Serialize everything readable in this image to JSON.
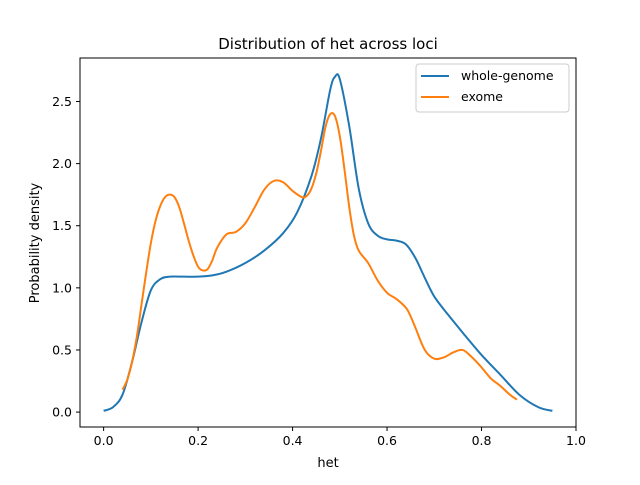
{
  "chart_data": {
    "type": "line",
    "title": "Distribution of het across loci",
    "xlabel": "het",
    "ylabel": "Probability density",
    "xlim": [
      -0.05,
      1.0
    ],
    "ylim": [
      -0.12,
      2.85
    ],
    "xticks": [
      0.0,
      0.2,
      0.4,
      0.6,
      0.8,
      1.0
    ],
    "xtick_labels": [
      "0.0",
      "0.2",
      "0.4",
      "0.6",
      "0.8",
      "1.0"
    ],
    "yticks": [
      0.0,
      0.5,
      1.0,
      1.5,
      2.0,
      2.5
    ],
    "ytick_labels": [
      "0.0",
      "0.5",
      "1.0",
      "1.5",
      "2.0",
      "2.5"
    ],
    "grid": false,
    "legend_position": "top-right",
    "series": [
      {
        "name": "whole-genome",
        "color": "#1f77b4",
        "x": [
          0.0,
          0.02,
          0.04,
          0.06,
          0.08,
          0.1,
          0.12,
          0.14,
          0.17,
          0.2,
          0.23,
          0.26,
          0.3,
          0.34,
          0.38,
          0.41,
          0.44,
          0.46,
          0.48,
          0.49,
          0.5,
          0.52,
          0.54,
          0.56,
          0.58,
          0.6,
          0.62,
          0.64,
          0.66,
          0.68,
          0.7,
          0.73,
          0.76,
          0.8,
          0.84,
          0.88,
          0.92,
          0.95
        ],
        "y": [
          0.01,
          0.04,
          0.14,
          0.4,
          0.72,
          0.98,
          1.07,
          1.09,
          1.09,
          1.09,
          1.1,
          1.13,
          1.2,
          1.3,
          1.44,
          1.61,
          1.9,
          2.2,
          2.6,
          2.7,
          2.68,
          2.3,
          1.8,
          1.52,
          1.42,
          1.39,
          1.38,
          1.35,
          1.24,
          1.08,
          0.93,
          0.78,
          0.64,
          0.46,
          0.3,
          0.14,
          0.04,
          0.01
        ]
      },
      {
        "name": "exome",
        "color": "#ff7f0e",
        "x": [
          0.04,
          0.05,
          0.06,
          0.07,
          0.08,
          0.09,
          0.1,
          0.11,
          0.12,
          0.13,
          0.14,
          0.15,
          0.16,
          0.17,
          0.18,
          0.19,
          0.2,
          0.21,
          0.22,
          0.23,
          0.24,
          0.26,
          0.28,
          0.3,
          0.32,
          0.34,
          0.36,
          0.38,
          0.4,
          0.42,
          0.43,
          0.44,
          0.45,
          0.46,
          0.47,
          0.48,
          0.49,
          0.5,
          0.51,
          0.52,
          0.53,
          0.54,
          0.56,
          0.58,
          0.6,
          0.62,
          0.64,
          0.65,
          0.66,
          0.68,
          0.7,
          0.72,
          0.74,
          0.76,
          0.78,
          0.8,
          0.82,
          0.84,
          0.86,
          0.875
        ],
        "y": [
          0.18,
          0.26,
          0.4,
          0.6,
          0.86,
          1.12,
          1.36,
          1.54,
          1.66,
          1.73,
          1.75,
          1.73,
          1.65,
          1.52,
          1.38,
          1.26,
          1.17,
          1.14,
          1.15,
          1.22,
          1.32,
          1.43,
          1.45,
          1.52,
          1.65,
          1.79,
          1.86,
          1.85,
          1.78,
          1.73,
          1.74,
          1.8,
          1.92,
          2.1,
          2.3,
          2.4,
          2.38,
          2.22,
          1.95,
          1.65,
          1.42,
          1.3,
          1.2,
          1.06,
          0.96,
          0.91,
          0.84,
          0.77,
          0.68,
          0.5,
          0.43,
          0.44,
          0.48,
          0.5,
          0.44,
          0.36,
          0.27,
          0.21,
          0.14,
          0.1
        ]
      }
    ]
  }
}
